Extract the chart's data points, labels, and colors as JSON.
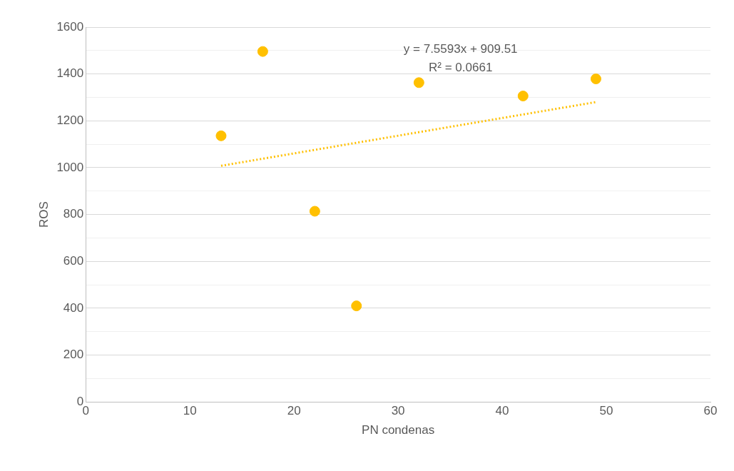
{
  "chart_data": {
    "type": "scatter",
    "xlabel": "PN condenas",
    "ylabel": "ROS",
    "xlim": [
      0,
      60
    ],
    "xticks": [
      0,
      10,
      20,
      30,
      40,
      50,
      60
    ],
    "ylim": [
      0,
      1600
    ],
    "yticks": [
      0,
      {
        "value": 100,
        "label": null
      },
      200,
      {
        "value": 300,
        "label": null
      },
      400,
      {
        "value": 500,
        "label": null
      },
      600,
      {
        "value": 700,
        "label": null
      },
      800,
      {
        "value": 900,
        "label": null
      },
      1000,
      {
        "value": 1100,
        "label": null
      },
      1200,
      {
        "value": 1300,
        "label": null
      },
      1400,
      {
        "value": 1500,
        "label": null
      },
      1600
    ],
    "grid": "y",
    "legend": false,
    "series": [
      {
        "color": "#ffc000",
        "marker": "circle",
        "x": [
          13,
          17,
          22,
          26,
          32,
          42,
          49
        ],
        "values": [
          1136,
          1496,
          814,
          410,
          1363,
          1306,
          1379
        ]
      },
      {
        "type": "line",
        "color": "#ffc000",
        "marker": "none",
        "line_style": "dotted",
        "x": [
          13,
          49
        ],
        "values": [
          1008,
          1280
        ]
      }
    ],
    "annotations": [
      "y = 7.5593x + 909.51",
      "R² = 0.0661"
    ]
  }
}
